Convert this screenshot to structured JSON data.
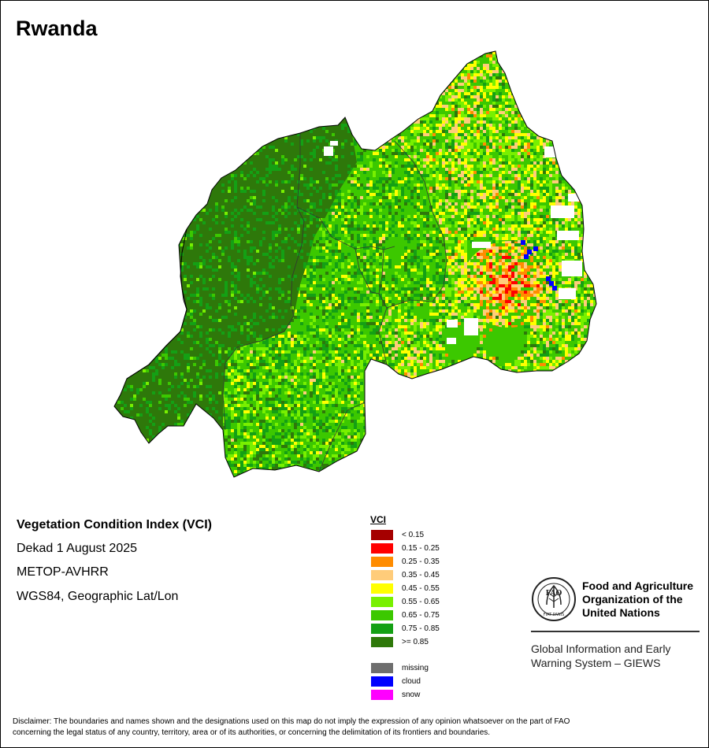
{
  "map": {
    "title": "Rwanda",
    "colors": {
      "border_line": "#333333",
      "outline": "#000000",
      "no_data": "#ffffff"
    }
  },
  "info": {
    "product": "Vegetation Condition Index (VCI)",
    "dekad": "Dekad 1 August 2025",
    "sensor": "METOP-AVHRR",
    "projection": "WGS84, Geographic Lat/Lon"
  },
  "legend": {
    "title": "VCI",
    "classes": [
      {
        "label": "< 0.15",
        "color": "#a50000"
      },
      {
        "label": "0.15 - 0.25",
        "color": "#ff0000"
      },
      {
        "label": "0.25 - 0.35",
        "color": "#ff8c00"
      },
      {
        "label": "0.35 - 0.45",
        "color": "#ffcc7a"
      },
      {
        "label": "0.45 - 0.55",
        "color": "#ffff00"
      },
      {
        "label": "0.55 - 0.65",
        "color": "#78f000"
      },
      {
        "label": "0.65 - 0.75",
        "color": "#3cc800"
      },
      {
        "label": "0.75 - 0.85",
        "color": "#14a014"
      },
      {
        "label": ">= 0.85",
        "color": "#2e780a"
      }
    ],
    "special": [
      {
        "label": "missing",
        "color": "#6e6e6e"
      },
      {
        "label": "cloud",
        "color": "#0000ff"
      },
      {
        "label": "snow",
        "color": "#ff00ff"
      }
    ]
  },
  "organization": {
    "logo_letters": "FAO",
    "logo_motto": "FIAT PANIS",
    "name_lines": [
      "Food and Agriculture",
      "Organization of the",
      "United Nations"
    ],
    "system_lines": [
      "Global Information and Early",
      "Warning System – GIEWS"
    ]
  },
  "disclaimer": {
    "line1": "Disclaimer: The boundaries and names shown and the designations used on this map do not imply the expression of any opinion whatsoever on the part of FAO",
    "line2": "concerning the legal status of any country, territory, area or of its authorities, or concerning the delimitation of its frontiers and boundaries."
  }
}
